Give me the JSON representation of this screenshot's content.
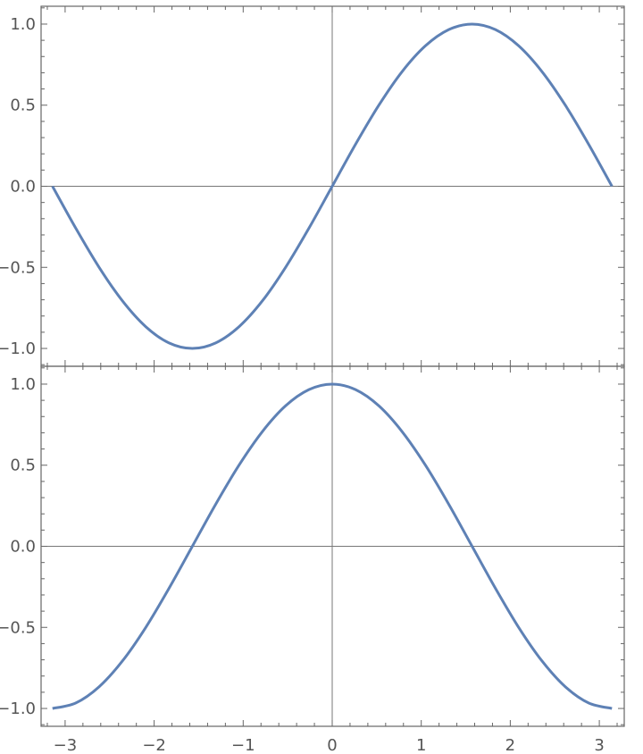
{
  "chart_data": [
    {
      "type": "line",
      "title": "",
      "xlabel": "",
      "ylabel": "",
      "xlim": [
        -3.27,
        3.28
      ],
      "ylim": [
        -1.11,
        1.11
      ],
      "grid": false,
      "axes_through_origin": true,
      "x_ticks": [
        -3,
        -2,
        -1,
        0,
        1,
        2,
        3
      ],
      "x_tick_labels_shown": false,
      "y_ticks": [
        -1.0,
        -0.5,
        0.0,
        0.5,
        1.0
      ],
      "y_tick_labels": [
        "-1.0",
        "-0.5",
        "0.0",
        "0.5",
        "1.0"
      ],
      "series": [
        {
          "color": "#5E81B5",
          "x": [
            -3.142,
            -2.88,
            -2.618,
            -2.356,
            -2.094,
            -1.833,
            -1.571,
            -1.309,
            -1.047,
            -0.785,
            -0.524,
            -0.262,
            0,
            0.262,
            0.524,
            0.785,
            1.047,
            1.309,
            1.571,
            1.833,
            2.094,
            2.356,
            2.618,
            2.88,
            3.142
          ],
          "y": [
            0,
            -0.259,
            -0.5,
            -0.707,
            -0.866,
            -0.966,
            -1,
            -0.966,
            -0.866,
            -0.707,
            -0.5,
            -0.259,
            0,
            0.259,
            0.5,
            0.707,
            0.866,
            0.966,
            1,
            0.966,
            0.866,
            0.707,
            0.5,
            0.259,
            0
          ]
        }
      ]
    },
    {
      "type": "line",
      "title": "",
      "xlabel": "",
      "ylabel": "",
      "xlim": [
        -3.27,
        3.28
      ],
      "ylim": [
        -1.11,
        1.11
      ],
      "grid": false,
      "axes_through_origin": true,
      "x_ticks": [
        -3,
        -2,
        -1,
        0,
        1,
        2,
        3
      ],
      "x_tick_labels": [
        "-3",
        "-2",
        "-1",
        "0",
        "1",
        "2",
        "3"
      ],
      "x_tick_labels_shown": true,
      "y_ticks": [
        -1.0,
        -0.5,
        0.0,
        0.5,
        1.0
      ],
      "y_tick_labels": [
        "-1.0",
        "-0.5",
        "0.0",
        "0.5",
        "1.0"
      ],
      "series": [
        {
          "color": "#5E81B5",
          "x": [
            -3.142,
            -2.88,
            -2.618,
            -2.356,
            -2.094,
            -1.833,
            -1.571,
            -1.309,
            -1.047,
            -0.785,
            -0.524,
            -0.262,
            0,
            0.262,
            0.524,
            0.785,
            1.047,
            1.309,
            1.571,
            1.833,
            2.094,
            2.356,
            2.618,
            2.88,
            3.142
          ],
          "y": [
            -1,
            -0.966,
            -0.866,
            -0.707,
            -0.5,
            -0.259,
            0,
            0.259,
            0.5,
            0.707,
            0.866,
            0.966,
            1,
            0.966,
            0.866,
            0.707,
            0.5,
            0.259,
            0,
            -0.259,
            -0.5,
            -0.707,
            -0.866,
            -0.966,
            -1
          ]
        }
      ]
    }
  ]
}
